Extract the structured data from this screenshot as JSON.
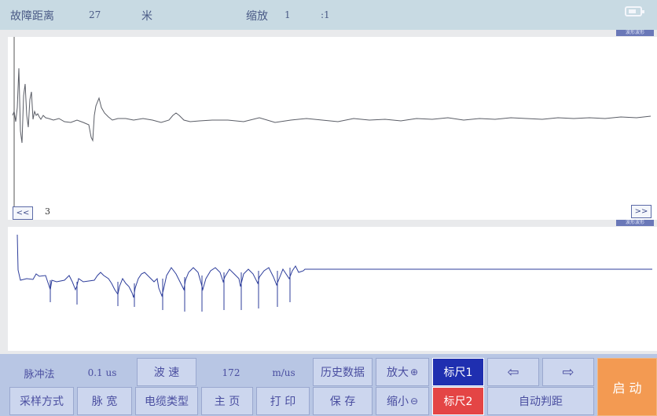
{
  "header": {
    "fault_distance_label": "故障距离",
    "fault_distance_value": "27",
    "unit": "米",
    "zoom_label": "缩放",
    "zoom_value": "1",
    "zoom_ratio": ":1"
  },
  "status_icons": [
    "battery-icon"
  ],
  "upper_plot": {
    "tag_label": "波形波形",
    "cursor_value": "3",
    "left_button": "<<",
    "right_button": ">>"
  },
  "lower_plot": {
    "tag_label": "波形波形"
  },
  "controls": {
    "row1": {
      "method_label": "脉冲法",
      "pulse_width_value": "0.1 us",
      "wave_speed_button": "波 速",
      "wave_speed_value": "172",
      "wave_speed_unit": "m/us",
      "history_button": "历史数据",
      "zoom_in_button": "放大",
      "cursor1_button": "标尺1"
    },
    "row2": {
      "sampling_button": "采样方式",
      "pulse_width_button": "脉 宽",
      "cable_type_button": "电缆类型",
      "home_button": "主 页",
      "print_button": "打 印",
      "save_button": "保 存",
      "zoom_out_button": "缩小",
      "cursor2_button": "标尺2",
      "auto_range_button": "自动判距"
    },
    "start_button": "启 动"
  },
  "colors": {
    "accent_blue": "#1f2fb0",
    "accent_red": "#e44545",
    "start_orange": "#f39a52",
    "trace": "#5a5d66",
    "trace_blue": "#2d3d9b"
  }
}
